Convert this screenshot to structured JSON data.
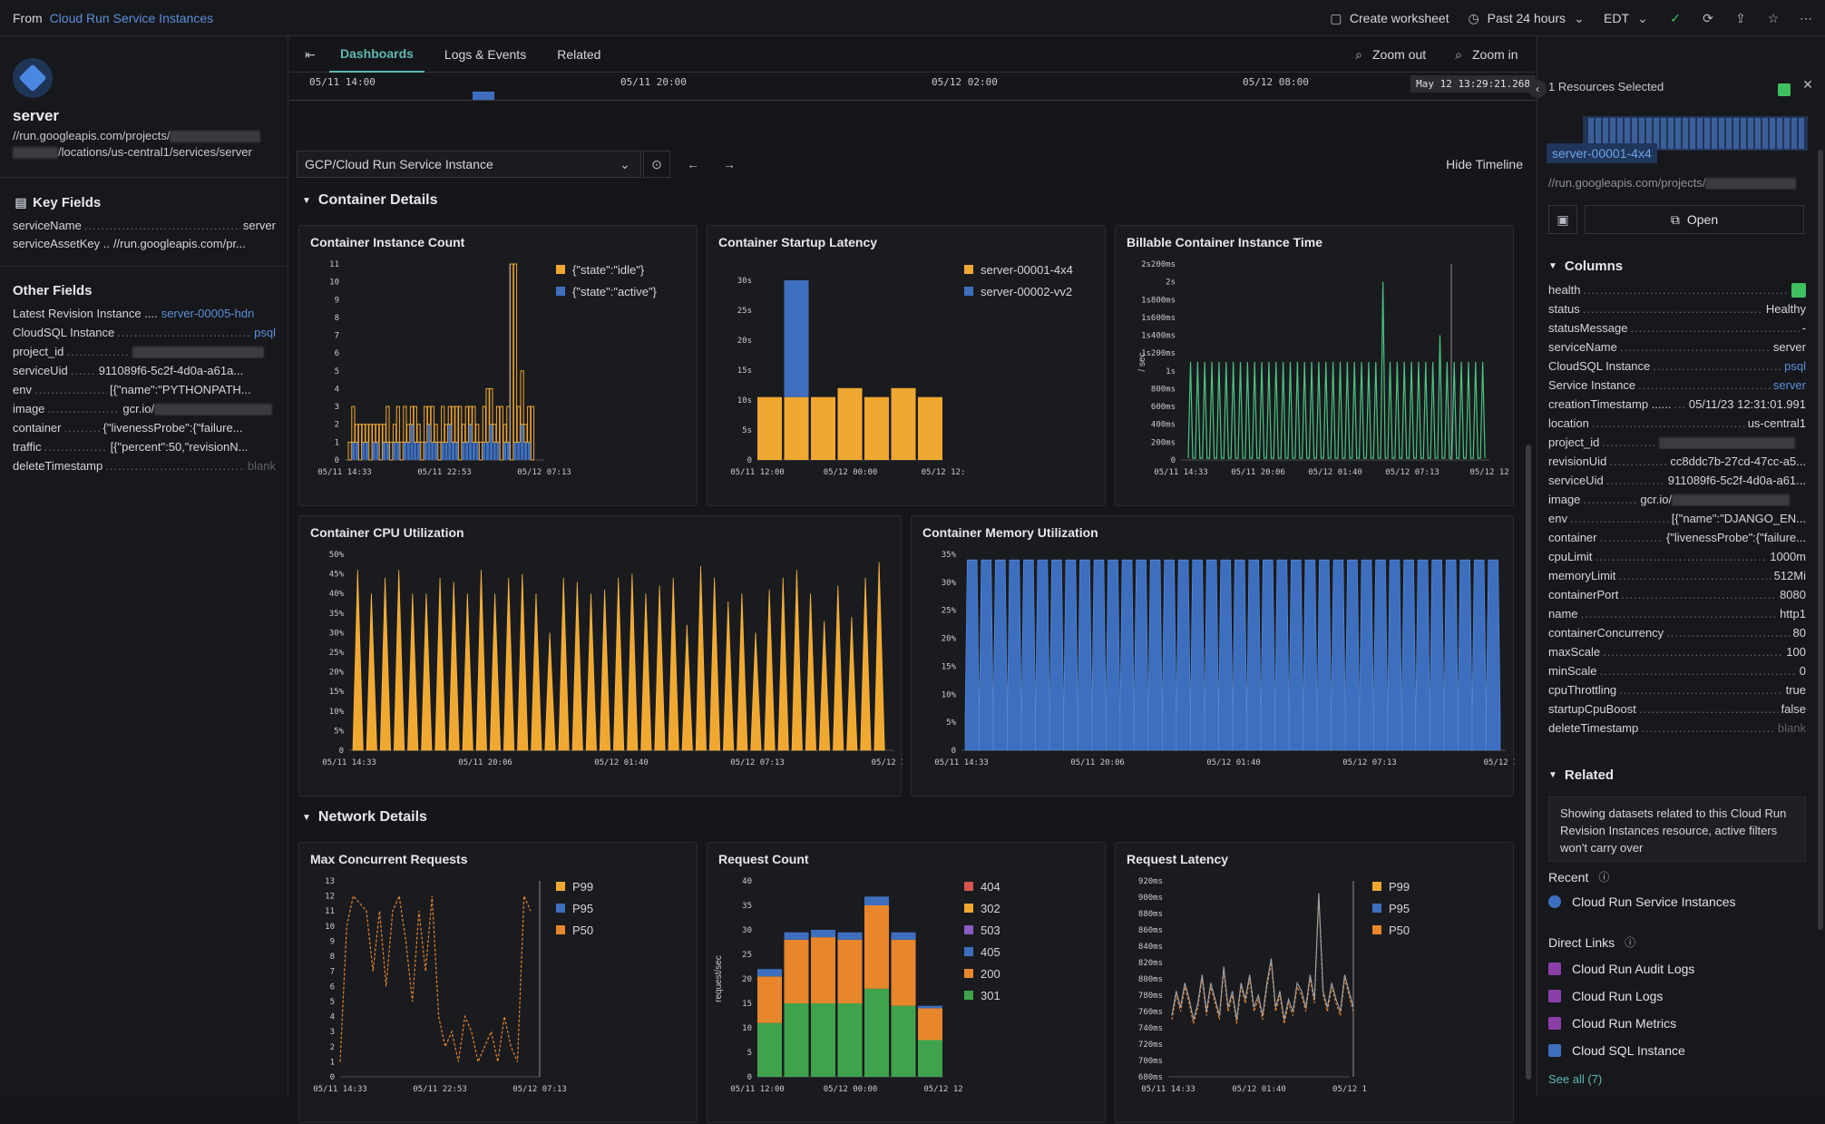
{
  "topbar": {
    "from_label": "From",
    "from_link": "Cloud Run Service Instances",
    "create_worksheet": "Create worksheet",
    "time_range": "Past 24 hours",
    "timezone": "EDT"
  },
  "left": {
    "title": "server",
    "path_line1": "//run.googleapis.com/projects/",
    "path_line2": "/locations/us-central1/services/server",
    "key_fields_title": "Key Fields",
    "key_fields": [
      {
        "k": "serviceName",
        "v": "server"
      },
      {
        "k": "serviceAssetKey ..",
        "v": "//run.googleapis.com/pr..."
      }
    ],
    "other_fields_title": "Other Fields",
    "other_fields": [
      {
        "k": "Latest Revision Instance ....",
        "v": "server-00005-hdn"
      },
      {
        "k": "CloudSQL Instance",
        "v": "psql"
      },
      {
        "k": "project_id",
        "v": ""
      },
      {
        "k": "serviceUid",
        "v": "911089f6-5c2f-4d0a-a61a..."
      },
      {
        "k": "env",
        "v": "[{\"name\":\"PYTHONPATH..."
      },
      {
        "k": "image",
        "v": "gcr.io/"
      },
      {
        "k": "container",
        "v": "{\"livenessProbe\":{\"failure..."
      },
      {
        "k": "traffic",
        "v": "[{\"percent\":50,\"revisionN..."
      },
      {
        "k": "deleteTimestamp",
        "v": "blank"
      }
    ]
  },
  "tabs": [
    "Dashboards",
    "Logs & Events",
    "Related"
  ],
  "zoom_out": "Zoom out",
  "zoom_in": "Zoom in",
  "timeline": {
    "labels": [
      "05/11 14:00",
      "05/11 20:00",
      "05/12 02:00",
      "05/12 08:00"
    ],
    "current": "May 12 13:29:21.268"
  },
  "filter": {
    "dataset": "GCP/Cloud Run Service Instance",
    "hide_timeline": "Hide Timeline"
  },
  "groups": {
    "container": "Container Details",
    "network": "Network Details"
  },
  "colors": {
    "orange": "#f0a830",
    "blue": "#3e6fbf",
    "green": "#3fa34d",
    "red": "#d9534f",
    "purple": "#8a5cc4",
    "orange2": "#e8862c",
    "teal_green": "#4cc482"
  },
  "chart_data": [
    {
      "type": "bar",
      "title": "Container Instance Count",
      "yticks": [
        "0",
        "1",
        "2",
        "3",
        "4",
        "5",
        "6",
        "7",
        "8",
        "9",
        "10",
        "11"
      ],
      "xticks": [
        "05/11 14:33",
        "05/11 22:53",
        "05/12 07:13"
      ],
      "series": [
        {
          "name": "{\"state\":\"idle\"}",
          "values": [
            1,
            2,
            1,
            2,
            1,
            1,
            2,
            1,
            1,
            2,
            1,
            2,
            1,
            1,
            2,
            1,
            2,
            1,
            1,
            2,
            1,
            1,
            2,
            1,
            2,
            1,
            1,
            2,
            1,
            1,
            2,
            2,
            3,
            1,
            2,
            1,
            2,
            1,
            1,
            2,
            3,
            2,
            1,
            2,
            3,
            1,
            2,
            11,
            10,
            2,
            3,
            1,
            2,
            3
          ]
        },
        {
          "name": "{\"state\":\"active\"}",
          "values": [
            0,
            1,
            1,
            0,
            1,
            1,
            0,
            1,
            1,
            0,
            1,
            1,
            0,
            1,
            1,
            0,
            1,
            1,
            2,
            1,
            1,
            0,
            1,
            2,
            1,
            1,
            0,
            1,
            1,
            2,
            1,
            1,
            0,
            1,
            1,
            2,
            1,
            1,
            0,
            1,
            1,
            2,
            1,
            1,
            0,
            1,
            1,
            0,
            1,
            1,
            2,
            1,
            1,
            0
          ]
        }
      ],
      "ylim": [
        0,
        11
      ]
    },
    {
      "type": "bar",
      "title": "Container Startup Latency",
      "yticks": [
        "0",
        "5s",
        "10s",
        "15s",
        "20s",
        "25s",
        "30s"
      ],
      "xticks": [
        "05/11 12:00",
        "05/12 00:00",
        "05/12 12:"
      ],
      "series": [
        {
          "name": "server-00001-4x4",
          "values": [
            10.5,
            10.5,
            10.5,
            12,
            10.5,
            12,
            10.5
          ]
        },
        {
          "name": "server-00002-vv2",
          "values": [
            0,
            19.5,
            0,
            0,
            0,
            0,
            0
          ]
        }
      ],
      "ylim": [
        0,
        30
      ]
    },
    {
      "type": "line",
      "title": "Billable Container Instance Time",
      "ylabel": "/ sec",
      "yticks": [
        "0",
        "200ms",
        "400ms",
        "600ms",
        "800ms",
        "1s",
        "1s200ms",
        "1s400ms",
        "1s600ms",
        "1s800ms",
        "2s",
        "2s200ms"
      ],
      "xticks": [
        "05/11 14:33",
        "05/11 20:06",
        "05/12 01:40",
        "05/12 07:13",
        "05/12 12"
      ],
      "ylim": [
        0,
        2.2
      ]
    },
    {
      "type": "area",
      "title": "Container CPU Utilization",
      "yticks": [
        "0",
        "5%",
        "10%",
        "15%",
        "20%",
        "25%",
        "30%",
        "35%",
        "40%",
        "45%",
        "50%"
      ],
      "xticks": [
        "05/11 14:33",
        "05/11 20:06",
        "05/12 01:40",
        "05/12 07:13",
        "05/12 12:"
      ],
      "ylim": [
        0,
        50
      ]
    },
    {
      "type": "area",
      "title": "Container Memory Utilization",
      "yticks": [
        "0",
        "5%",
        "10%",
        "15%",
        "20%",
        "25%",
        "30%",
        "35%"
      ],
      "xticks": [
        "05/11 14:33",
        "05/11 20:06",
        "05/12 01:40",
        "05/12 07:13",
        "05/12 12:"
      ],
      "ylim": [
        0,
        35
      ]
    },
    {
      "type": "line",
      "title": "Max Concurrent Requests",
      "yticks": [
        "0",
        "1",
        "2",
        "3",
        "4",
        "5",
        "6",
        "7",
        "8",
        "9",
        "10",
        "11",
        "12",
        "13"
      ],
      "xticks": [
        "05/11 14:33",
        "05/11 22:53",
        "05/12 07:13"
      ],
      "series": [
        {
          "name": "P99"
        },
        {
          "name": "P95"
        },
        {
          "name": "P50"
        }
      ],
      "ylim": [
        0,
        13
      ]
    },
    {
      "type": "bar",
      "title": "Request Count",
      "ylabel": "request/sec",
      "yticks": [
        "0",
        "5",
        "10",
        "15",
        "20",
        "25",
        "30",
        "35",
        "40"
      ],
      "xticks": [
        "05/11 12:00",
        "05/12 00:00",
        "05/12 12"
      ],
      "series": [
        {
          "name": "404",
          "values": [
            0,
            0,
            0,
            0,
            0,
            0,
            0
          ]
        },
        {
          "name": "302",
          "values": [
            0,
            0,
            0,
            0,
            0,
            0,
            0
          ]
        },
        {
          "name": "503",
          "values": [
            0,
            0,
            0,
            0,
            0,
            0,
            0
          ]
        },
        {
          "name": "405",
          "values": [
            1.5,
            1.5,
            1.5,
            1.5,
            1.8,
            1.5,
            0.5
          ]
        },
        {
          "name": "200",
          "values": [
            9.5,
            13,
            13.5,
            13,
            17,
            13.5,
            6.5
          ]
        },
        {
          "name": "301",
          "values": [
            11,
            15,
            15,
            15,
            18,
            14.5,
            7.5
          ]
        }
      ],
      "ylim": [
        0,
        40
      ]
    },
    {
      "type": "line",
      "title": "Request Latency",
      "yticks": [
        "680ms",
        "700ms",
        "720ms",
        "740ms",
        "760ms",
        "780ms",
        "800ms",
        "820ms",
        "840ms",
        "860ms",
        "880ms",
        "900ms",
        "920ms"
      ],
      "xticks": [
        "05/11 14:33",
        "05/12 01:40",
        "05/12 1"
      ],
      "series": [
        {
          "name": "P99"
        },
        {
          "name": "P95"
        },
        {
          "name": "P50"
        }
      ],
      "ylim": [
        680,
        920
      ]
    }
  ],
  "right": {
    "selected": "1 Resources Selected",
    "chip": "server-00001-4x4",
    "url": "//run.googleapis.com/projects/",
    "open": "Open",
    "columns_title": "Columns",
    "columns": [
      {
        "k": "health",
        "v": ""
      },
      {
        "k": "status",
        "v": "Healthy"
      },
      {
        "k": "statusMessage",
        "v": "-"
      },
      {
        "k": "serviceName",
        "v": "server"
      },
      {
        "k": "CloudSQL Instance",
        "v": "psql"
      },
      {
        "k": "Service Instance",
        "v": "server"
      },
      {
        "k": "creationTimestamp ......",
        "v": "05/11/23 12:31:01.991"
      },
      {
        "k": "location",
        "v": "us-central1"
      },
      {
        "k": "project_id",
        "v": ""
      },
      {
        "k": "revisionUid",
        "v": "cc8ddc7b-27cd-47cc-a5..."
      },
      {
        "k": "serviceUid",
        "v": "911089f6-5c2f-4d0a-a61..."
      },
      {
        "k": "image",
        "v": "gcr.io/"
      },
      {
        "k": "env",
        "v": "[{\"name\":\"DJANGO_EN..."
      },
      {
        "k": "container",
        "v": "{\"livenessProbe\":{\"failure..."
      },
      {
        "k": "cpuLimit",
        "v": "1000m"
      },
      {
        "k": "memoryLimit",
        "v": "512Mi"
      },
      {
        "k": "containerPort",
        "v": "8080"
      },
      {
        "k": "name",
        "v": "http1"
      },
      {
        "k": "containerConcurrency",
        "v": "80"
      },
      {
        "k": "maxScale",
        "v": "100"
      },
      {
        "k": "minScale",
        "v": "0"
      },
      {
        "k": "cpuThrottling",
        "v": "true"
      },
      {
        "k": "startupCpuBoost",
        "v": "false"
      },
      {
        "k": "deleteTimestamp",
        "v": "blank"
      }
    ],
    "related_title": "Related",
    "related_text": "Showing datasets related to this Cloud Run Revision Instances resource, active filters won't carry over",
    "recent_title": "Recent",
    "recent_item": "Cloud Run Service Instances",
    "direct_links_title": "Direct Links",
    "direct_links": [
      "Cloud Run Audit Logs",
      "Cloud Run Logs",
      "Cloud Run Metrics",
      "Cloud SQL Instance"
    ],
    "see_all": "See all (7)"
  }
}
